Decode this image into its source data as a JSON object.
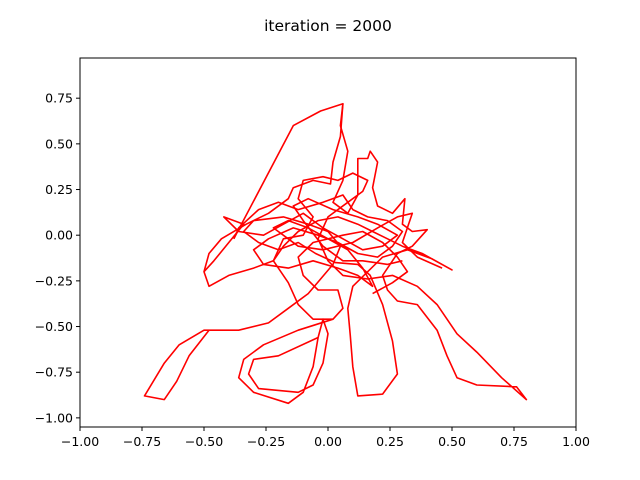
{
  "chart_data": {
    "type": "line",
    "title": "iteration = 2000",
    "xlabel": "",
    "ylabel": "",
    "xlim": [
      -1.0,
      1.0
    ],
    "ylim": [
      -1.05,
      0.97
    ],
    "xticks": [
      -1.0,
      -0.75,
      -0.5,
      -0.25,
      0.0,
      0.25,
      0.5,
      0.75,
      1.0
    ],
    "xtick_labels": [
      "−1.00",
      "−0.75",
      "−0.50",
      "−0.25",
      "0.00",
      "0.25",
      "0.50",
      "0.75",
      "1.00"
    ],
    "yticks": [
      -1.0,
      -0.75,
      -0.5,
      -0.25,
      0.0,
      0.25,
      0.5,
      0.75
    ],
    "ytick_labels": [
      "−1.00",
      "−0.75",
      "−0.50",
      "−0.25",
      "0.00",
      "0.25",
      "0.50",
      "0.75"
    ],
    "grid": false,
    "line_color": "#ff0000",
    "series": [
      {
        "values": [
          [
            -0.38,
            -0.02
          ],
          [
            -0.14,
            0.6
          ],
          [
            -0.03,
            0.68
          ],
          [
            0.06,
            0.72
          ],
          [
            0.05,
            0.54
          ],
          [
            0.02,
            0.4
          ],
          [
            0.01,
            0.28
          ],
          [
            -0.06,
            0.3
          ],
          [
            -0.14,
            0.26
          ],
          [
            -0.16,
            0.2
          ],
          [
            -0.24,
            0.12
          ],
          [
            -0.33,
            0.06
          ],
          [
            -0.43,
            -0.02
          ],
          [
            -0.48,
            -0.1
          ],
          [
            -0.5,
            -0.2
          ],
          [
            -0.48,
            -0.28
          ],
          [
            -0.4,
            -0.22
          ],
          [
            -0.3,
            -0.18
          ],
          [
            -0.22,
            -0.14
          ],
          [
            -0.18,
            -0.06
          ],
          [
            -0.12,
            0.02
          ],
          [
            -0.04,
            0.08
          ],
          [
            0.04,
            0.1
          ],
          [
            0.12,
            0.06
          ],
          [
            0.18,
            0.02
          ],
          [
            0.24,
            -0.02
          ],
          [
            0.3,
            -0.06
          ],
          [
            0.38,
            -0.1
          ],
          [
            0.5,
            -0.19
          ],
          [
            0.42,
            -0.13
          ],
          [
            0.32,
            -0.08
          ],
          [
            0.22,
            -0.12
          ],
          [
            0.16,
            -0.2
          ],
          [
            0.1,
            -0.28
          ],
          [
            0.08,
            -0.4
          ],
          [
            0.09,
            -0.55
          ],
          [
            0.1,
            -0.72
          ],
          [
            0.12,
            -0.88
          ],
          [
            0.22,
            -0.87
          ],
          [
            0.28,
            -0.76
          ],
          [
            0.26,
            -0.58
          ],
          [
            0.22,
            -0.38
          ],
          [
            0.17,
            -0.22
          ],
          [
            0.12,
            -0.16
          ],
          [
            0.03,
            -0.15
          ],
          [
            -0.05,
            -0.1
          ],
          [
            -0.12,
            -0.04
          ],
          [
            -0.2,
            -0.08
          ],
          [
            -0.28,
            -0.04
          ],
          [
            -0.34,
            0.02
          ],
          [
            -0.3,
            0.08
          ],
          [
            -0.18,
            0.1
          ],
          [
            -0.08,
            0.06
          ],
          [
            0.0,
            0.02
          ],
          [
            0.05,
            -0.06
          ],
          [
            0.02,
            -0.16
          ],
          [
            -0.03,
            -0.24
          ],
          [
            -0.08,
            -0.32
          ],
          [
            -0.16,
            -0.4
          ],
          [
            -0.24,
            -0.48
          ],
          [
            -0.36,
            -0.52
          ],
          [
            -0.5,
            -0.52
          ],
          [
            -0.6,
            -0.6
          ],
          [
            -0.66,
            -0.7
          ],
          [
            -0.74,
            -0.88
          ],
          [
            -0.66,
            -0.9
          ],
          [
            -0.61,
            -0.8
          ],
          [
            -0.56,
            -0.66
          ],
          [
            -0.48,
            -0.52
          ]
        ]
      },
      {
        "values": [
          [
            0.06,
            0.72
          ],
          [
            0.05,
            0.6
          ],
          [
            0.08,
            0.46
          ],
          [
            0.06,
            0.3
          ],
          [
            0.02,
            0.18
          ],
          [
            0.08,
            0.12
          ],
          [
            0.12,
            0.22
          ],
          [
            0.12,
            0.42
          ],
          [
            0.16,
            0.42
          ],
          [
            0.17,
            0.46
          ],
          [
            0.2,
            0.4
          ],
          [
            0.18,
            0.26
          ],
          [
            0.2,
            0.16
          ],
          [
            0.26,
            0.12
          ],
          [
            0.31,
            0.2
          ],
          [
            0.3,
            0.06
          ],
          [
            0.34,
            0.02
          ],
          [
            0.4,
            0.03
          ],
          [
            0.34,
            -0.06
          ],
          [
            0.28,
            -0.1
          ],
          [
            0.22,
            -0.22
          ],
          [
            0.24,
            -0.3
          ],
          [
            0.28,
            -0.36
          ],
          [
            0.36,
            -0.38
          ],
          [
            0.44,
            -0.52
          ],
          [
            0.48,
            -0.66
          ],
          [
            0.52,
            -0.78
          ],
          [
            0.6,
            -0.82
          ],
          [
            0.76,
            -0.83
          ],
          [
            0.8,
            -0.9
          ],
          [
            0.7,
            -0.78
          ],
          [
            0.6,
            -0.64
          ],
          [
            0.52,
            -0.54
          ],
          [
            0.44,
            -0.38
          ],
          [
            0.36,
            -0.28
          ],
          [
            0.26,
            -0.22
          ],
          [
            0.16,
            -0.24
          ],
          [
            0.06,
            -0.22
          ],
          [
            0.0,
            -0.14
          ],
          [
            -0.04,
            -0.02
          ],
          [
            0.0,
            0.1
          ],
          [
            0.08,
            0.18
          ],
          [
            0.14,
            0.24
          ],
          [
            0.16,
            0.3
          ],
          [
            0.1,
            0.34
          ],
          [
            0.04,
            0.3
          ],
          [
            -0.02,
            0.32
          ],
          [
            -0.1,
            0.3
          ],
          [
            -0.12,
            0.2
          ],
          [
            -0.06,
            0.1
          ],
          [
            -0.1,
            0.0
          ],
          [
            -0.18,
            -0.02
          ],
          [
            -0.22,
            -0.14
          ],
          [
            -0.16,
            -0.26
          ],
          [
            -0.12,
            -0.38
          ],
          [
            -0.06,
            -0.46
          ],
          [
            0.02,
            -0.46
          ],
          [
            0.06,
            -0.4
          ],
          [
            0.04,
            -0.3
          ],
          [
            -0.04,
            -0.3
          ],
          [
            -0.1,
            -0.22
          ],
          [
            -0.12,
            -0.12
          ],
          [
            -0.06,
            -0.04
          ],
          [
            0.06,
            0.0
          ],
          [
            0.14,
            0.02
          ],
          [
            0.22,
            -0.04
          ],
          [
            0.28,
            -0.12
          ],
          [
            0.32,
            -0.2
          ],
          [
            0.26,
            -0.26
          ],
          [
            0.18,
            -0.32
          ]
        ]
      },
      {
        "values": [
          [
            0.02,
            -0.46
          ],
          [
            -0.12,
            -0.52
          ],
          [
            -0.26,
            -0.6
          ],
          [
            -0.34,
            -0.68
          ],
          [
            -0.36,
            -0.78
          ],
          [
            -0.3,
            -0.86
          ],
          [
            -0.16,
            -0.92
          ],
          [
            -0.1,
            -0.86
          ],
          [
            -0.06,
            -0.72
          ],
          [
            -0.04,
            -0.56
          ],
          [
            -0.02,
            -0.46
          ],
          [
            0.0,
            -0.54
          ],
          [
            -0.02,
            -0.7
          ],
          [
            -0.06,
            -0.82
          ],
          [
            -0.12,
            -0.86
          ],
          [
            -0.28,
            -0.84
          ],
          [
            -0.32,
            -0.76
          ],
          [
            -0.3,
            -0.68
          ],
          [
            -0.2,
            -0.66
          ],
          [
            -0.04,
            -0.56
          ]
        ]
      },
      {
        "values": [
          [
            -0.38,
            -0.02
          ],
          [
            -0.36,
            0.04
          ],
          [
            -0.28,
            0.14
          ],
          [
            -0.2,
            0.18
          ],
          [
            -0.12,
            0.14
          ],
          [
            -0.02,
            0.18
          ],
          [
            0.06,
            0.22
          ],
          [
            0.1,
            0.14
          ],
          [
            0.16,
            0.1
          ],
          [
            0.24,
            0.08
          ],
          [
            0.3,
            0.02
          ],
          [
            0.26,
            -0.06
          ],
          [
            0.2,
            -0.12
          ],
          [
            0.12,
            -0.1
          ],
          [
            0.04,
            -0.04
          ],
          [
            -0.04,
            0.0
          ],
          [
            -0.14,
            0.04
          ],
          [
            -0.24,
            -0.02
          ],
          [
            -0.3,
            -0.08
          ],
          [
            -0.26,
            -0.16
          ],
          [
            -0.16,
            -0.18
          ],
          [
            -0.06,
            -0.14
          ],
          [
            0.04,
            -0.18
          ],
          [
            0.12,
            -0.22
          ],
          [
            0.18,
            -0.28
          ],
          [
            0.14,
            -0.18
          ],
          [
            0.08,
            -0.08
          ],
          [
            0.0,
            -0.02
          ],
          [
            -0.08,
            0.04
          ],
          [
            -0.16,
            0.08
          ],
          [
            -0.22,
            0.04
          ],
          [
            -0.12,
            -0.06
          ],
          [
            -0.02,
            -0.08
          ],
          [
            0.1,
            -0.04
          ],
          [
            0.2,
            0.04
          ],
          [
            0.28,
            0.1
          ],
          [
            0.34,
            0.12
          ],
          [
            0.3,
            -0.04
          ],
          [
            0.36,
            -0.12
          ],
          [
            0.46,
            -0.18
          ]
        ]
      },
      {
        "values": [
          [
            -0.5,
            -0.2
          ],
          [
            -0.46,
            -0.14
          ],
          [
            -0.4,
            -0.04
          ],
          [
            -0.34,
            0.06
          ],
          [
            -0.42,
            0.1
          ],
          [
            -0.36,
            0.02
          ],
          [
            -0.26,
            0.0
          ],
          [
            -0.18,
            0.06
          ],
          [
            -0.1,
            0.12
          ],
          [
            -0.02,
            0.04
          ],
          [
            0.06,
            -0.02
          ],
          [
            0.14,
            -0.08
          ],
          [
            0.22,
            -0.06
          ],
          [
            0.28,
            0.0
          ],
          [
            0.2,
            0.06
          ],
          [
            0.12,
            0.1
          ],
          [
            0.02,
            0.14
          ],
          [
            -0.08,
            0.2
          ],
          [
            -0.14,
            0.16
          ],
          [
            -0.1,
            0.08
          ],
          [
            -0.02,
            -0.06
          ],
          [
            0.06,
            -0.14
          ],
          [
            0.14,
            -0.14
          ],
          [
            0.24,
            -0.16
          ],
          [
            0.3,
            -0.14
          ]
        ]
      }
    ]
  }
}
